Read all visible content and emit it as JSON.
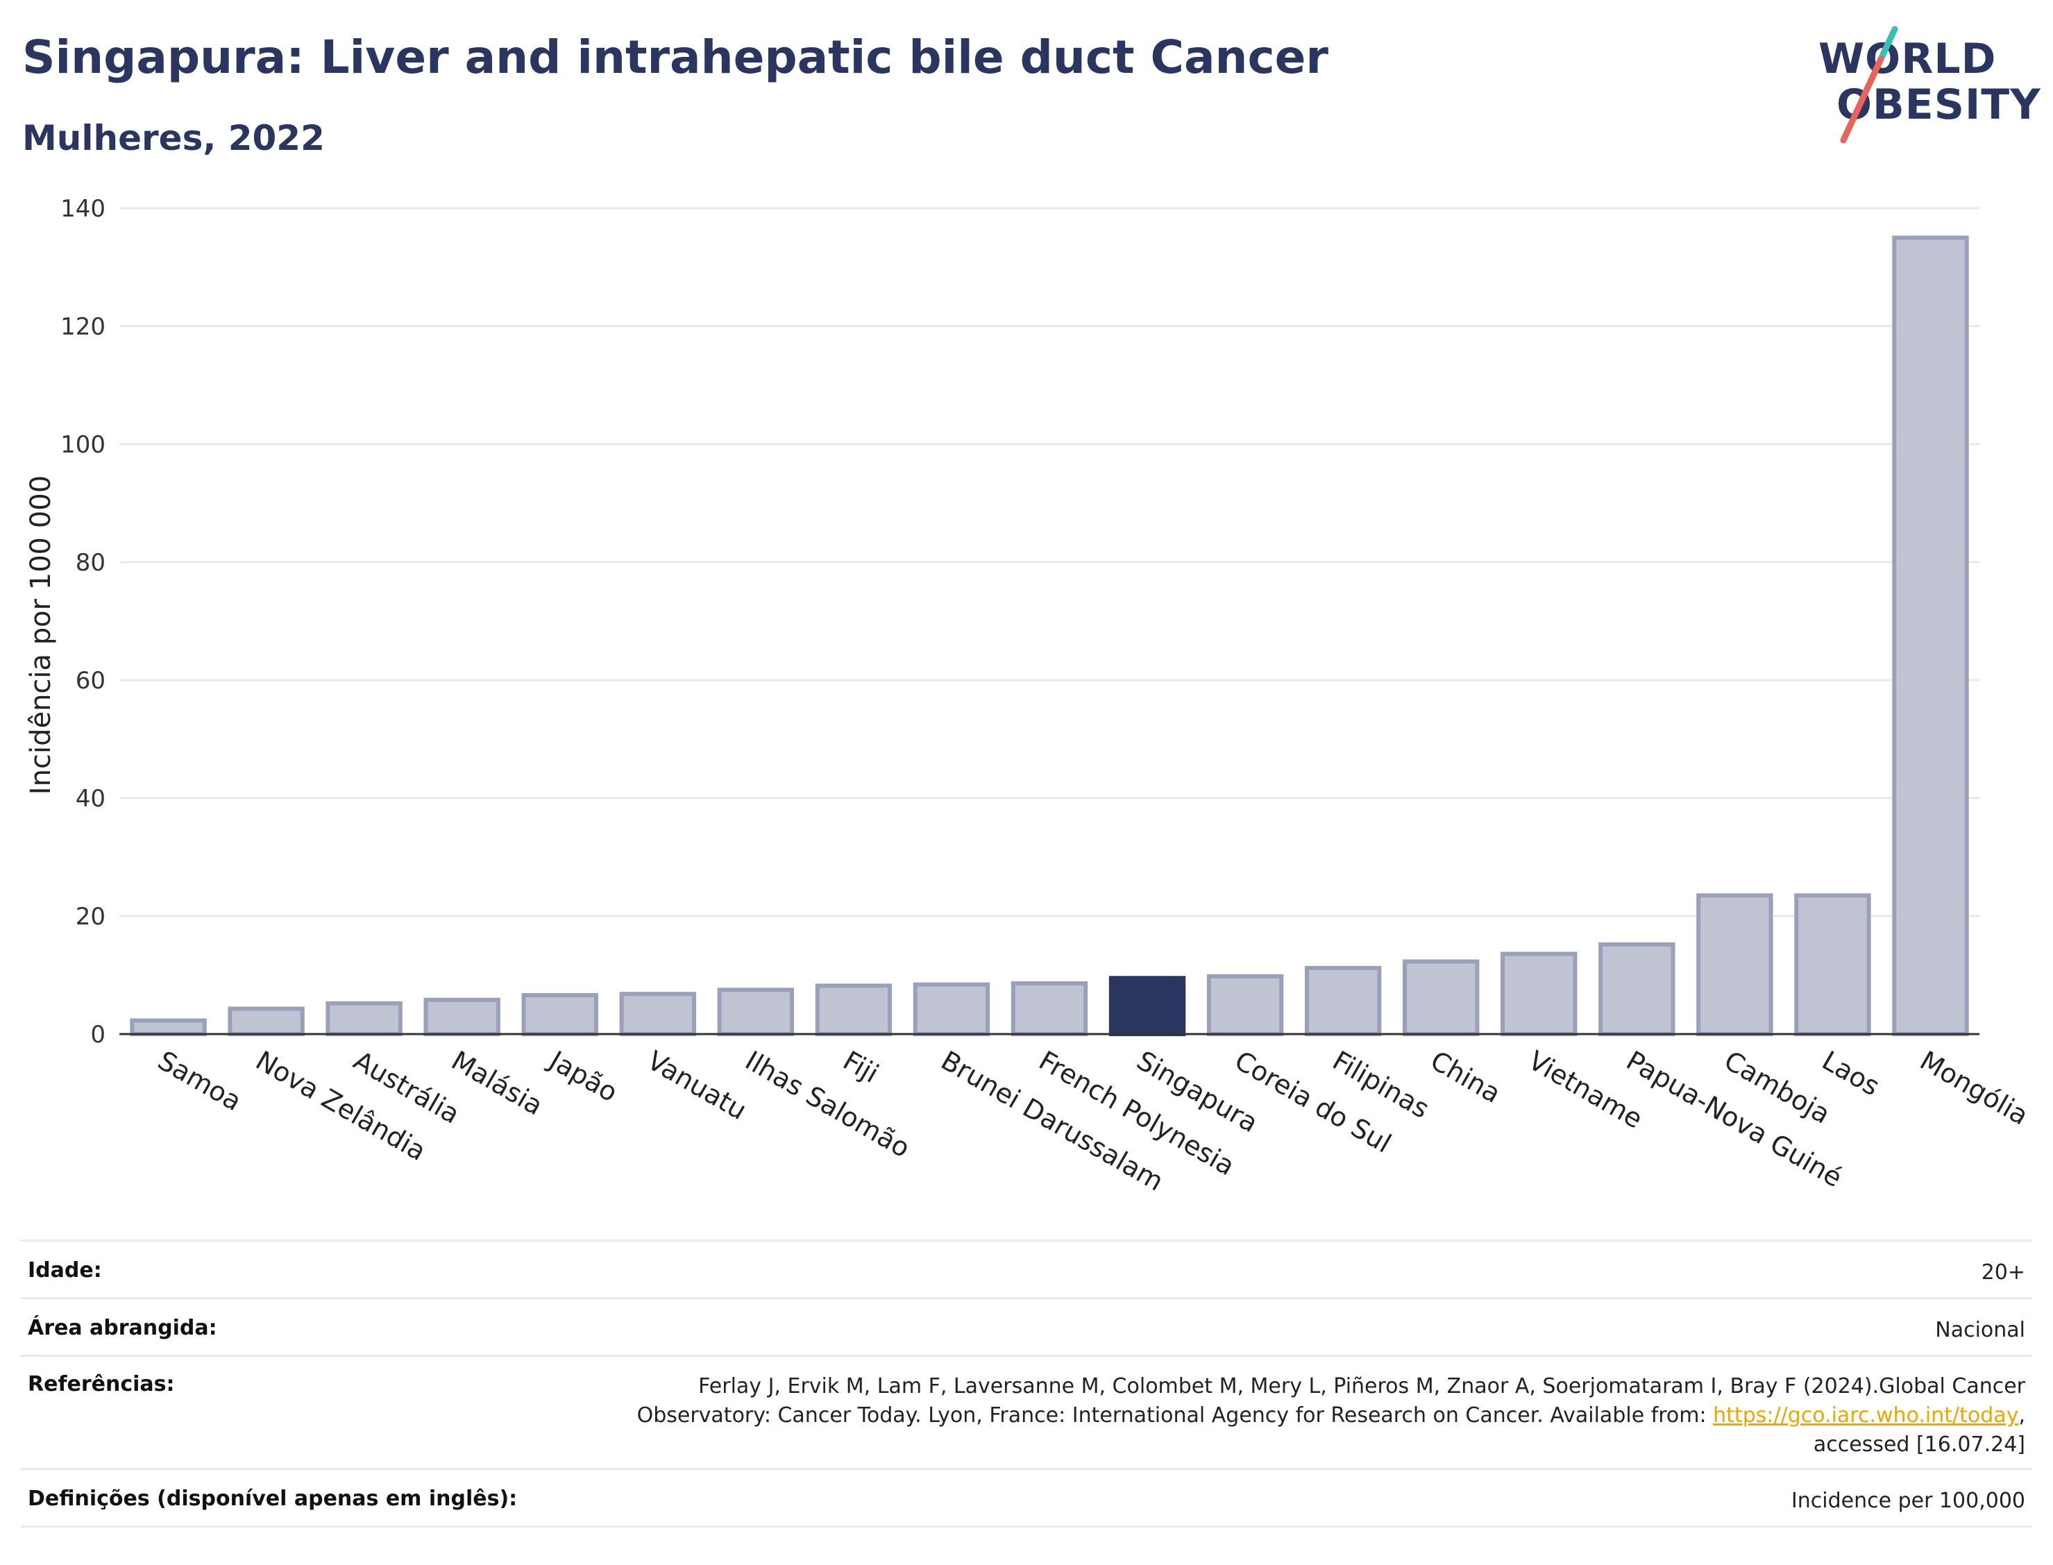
{
  "header": {
    "title": "Singapura: Liver and intrahepatic bile duct Cancer",
    "subtitle": "Mulheres, 2022"
  },
  "logo": {
    "line1": "WORLD",
    "line2": "OBESITY"
  },
  "colors": {
    "bar_default": "#c0c4d2",
    "bar_default_stroke": "#9aa0ba",
    "bar_highlight": "#2a3560",
    "title": "#2a3560",
    "grid": "#e6e8ee",
    "link": "#e8a800"
  },
  "chart_data": {
    "type": "bar",
    "ylabel": "Incidência por 100 000",
    "ylim": [
      0,
      140
    ],
    "yticks": [
      0,
      20,
      40,
      60,
      80,
      100,
      120,
      140
    ],
    "grid": true,
    "highlight": "Singapura",
    "categories": [
      "Samoa",
      "Nova Zelândia",
      "Austrália",
      "Malásia",
      "Japão",
      "Vanuatu",
      "Ilhas Salomão",
      "Fiji",
      "Brunei Darussalam",
      "French Polynesia",
      "Singapura",
      "Coreia do Sul",
      "Filipinas",
      "China",
      "Vietname",
      "Papua-Nova Guiné",
      "Camboja",
      "Laos",
      "Mongólia"
    ],
    "values": [
      2.3,
      4.3,
      5.2,
      5.8,
      6.6,
      6.8,
      7.5,
      8.2,
      8.4,
      8.6,
      9.5,
      9.8,
      11.2,
      12.3,
      13.6,
      15.2,
      23.5,
      23.5,
      135.0
    ]
  },
  "info": {
    "age_label": "Idade:",
    "age_value": "20+",
    "area_label": "Área abrangida:",
    "area_value": "Nacional",
    "refs_label": "Referências:",
    "refs_line1": "Ferlay J, Ervik M, Lam F, Laversanne M, Colombet M, Mery L, Piñeros M, Znaor A, Soerjomataram I, Bray F (2024).Global Cancer",
    "refs_line2_pre": "Observatory: Cancer Today. Lyon, France: International Agency for Research on Cancer. Available from: ",
    "refs_link": "https://gco.iarc.who.int/today",
    "refs_line2_post": ",",
    "refs_line3": "accessed [16.07.24]",
    "defs_label": "Definições (disponível apenas em inglês):",
    "defs_value": "Incidence per 100,000"
  }
}
